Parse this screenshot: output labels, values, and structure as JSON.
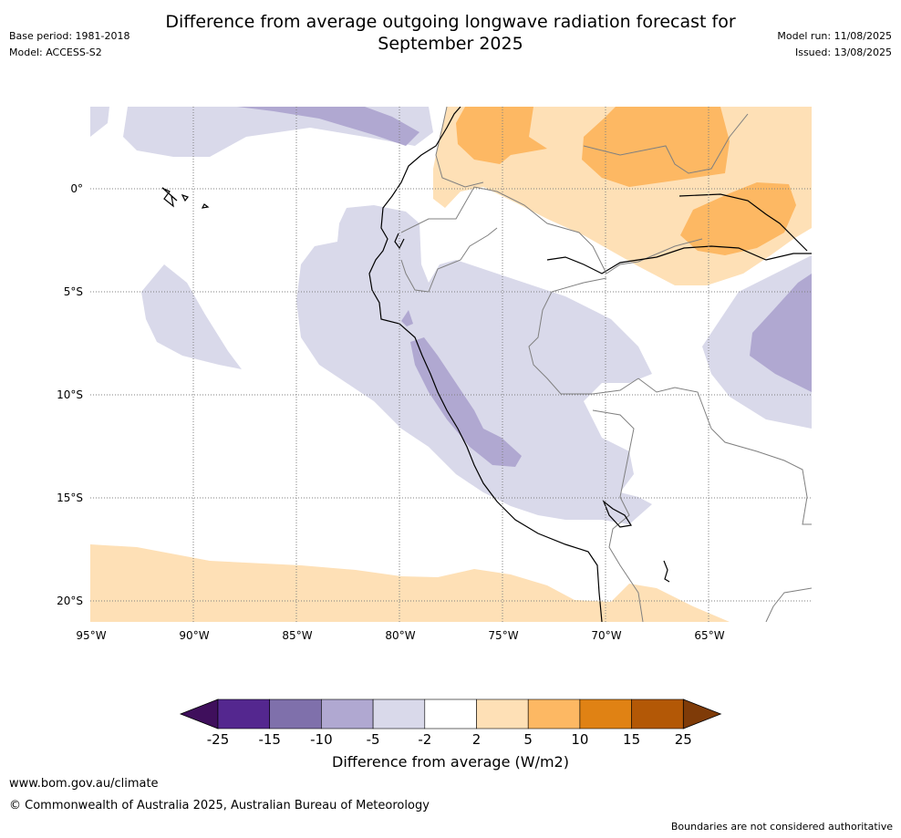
{
  "title_lines": [
    "Difference from average outgoing longwave radiation forecast for",
    "September 2025"
  ],
  "base_period": "Base period: 1981-2018",
  "model": "Model: ACCESS-S2",
  "model_run": "Model run: 11/08/2025",
  "issued": "Issued: 13/08/2025",
  "map": {
    "lon_labels": [
      "95°W",
      "90°W",
      "85°W",
      "80°W",
      "75°W",
      "70°W",
      "65°W"
    ],
    "lat_labels": [
      "0°",
      "5°S",
      "10°S",
      "15°S",
      "20°S"
    ],
    "lon_range": [
      -95,
      -60.2
    ],
    "lat_range": [
      4,
      -21
    ],
    "grid": true
  },
  "colorbar": {
    "units_label": "Difference from average (W/m2)",
    "tick_labels": [
      "-25",
      "-15",
      "-10",
      "-5",
      "-2",
      "2",
      "5",
      "10",
      "15",
      "25"
    ],
    "colors": [
      "#3f0f5c",
      "#54278f",
      "#7f70ab",
      "#b0a8d1",
      "#d9d9ea",
      "#ffffff",
      "#fee0b6",
      "#fdb863",
      "#e08214",
      "#b35806",
      "#7f3b08"
    ]
  },
  "url": "www.bom.gov.au/climate",
  "copyright": "© Commonwealth of Australia 2025, Australian Bureau of Meteorology",
  "disclaimer": "Boundaries are not considered authoritative"
}
